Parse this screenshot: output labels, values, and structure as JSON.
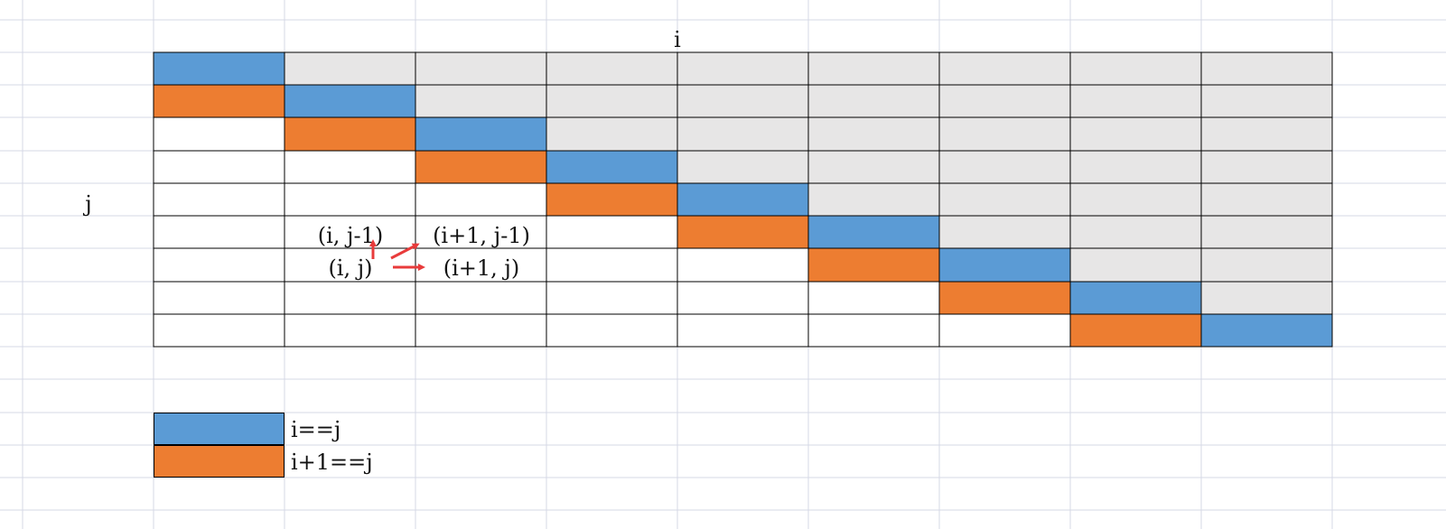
{
  "axis": {
    "x_label": "i",
    "y_label": "j"
  },
  "matrix": {
    "rows": [
      [
        "B",
        "G",
        "G",
        "G",
        "G",
        "G",
        "G",
        "G",
        "G"
      ],
      [
        "O",
        "B",
        "G",
        "G",
        "G",
        "G",
        "G",
        "G",
        "G"
      ],
      [
        "W",
        "O",
        "B",
        "G",
        "G",
        "G",
        "G",
        "G",
        "G"
      ],
      [
        "W",
        "W",
        "O",
        "B",
        "G",
        "G",
        "G",
        "G",
        "G"
      ],
      [
        "W",
        "W",
        "W",
        "O",
        "B",
        "G",
        "G",
        "G",
        "G"
      ],
      [
        "W",
        "W",
        "W",
        "W",
        "O",
        "B",
        "G",
        "G",
        "G"
      ],
      [
        "W",
        "W",
        "W",
        "W",
        "W",
        "O",
        "B",
        "G",
        "G"
      ],
      [
        "W",
        "W",
        "W",
        "W",
        "W",
        "W",
        "O",
        "B",
        "G"
      ],
      [
        "W",
        "W",
        "W",
        "W",
        "W",
        "W",
        "W",
        "O",
        "B"
      ]
    ]
  },
  "annotations": {
    "i_jm1": "(i, j-1)",
    "i1_jm1": "(i+1, j-1)",
    "i_j": "(i, j)",
    "i1_j": "(i+1, j)"
  },
  "legend": [
    {
      "key": "B",
      "label": "i==j"
    },
    {
      "key": "O",
      "label": "i+1==j"
    }
  ],
  "colors": {
    "B": "#5b9bd5",
    "O": "#ed7d31",
    "G": "#e7e6e6",
    "W": "#ffffff",
    "arrow": "#e83b3b",
    "sheet_grid": "#d5d9e6"
  }
}
